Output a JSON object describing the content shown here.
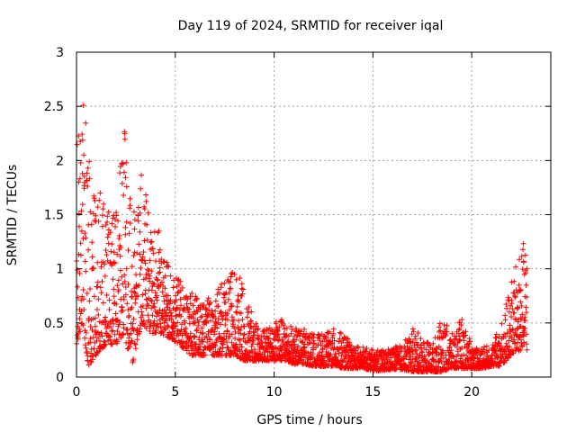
{
  "chart_data": {
    "type": "scatter",
    "title": "Day 119 of 2024, SRMTID for receiver iqal",
    "xlabel": "GPS time / hours",
    "ylabel": "SRMTID / TECUs",
    "xlim": [
      0,
      24
    ],
    "ylim": [
      0,
      3
    ],
    "xticks": [
      0,
      5,
      10,
      15,
      20
    ],
    "yticks": [
      0,
      0.5,
      1,
      1.5,
      2,
      2.5,
      3
    ],
    "grid": true,
    "marker": "+",
    "series_color": "#ff0000",
    "envelope": {
      "x": [
        0.0,
        0.3,
        0.6,
        1.0,
        1.5,
        2.0,
        2.4,
        2.8,
        3.3,
        3.8,
        4.3,
        4.8,
        5.2,
        5.8,
        6.5,
        7.0,
        7.5,
        8.0,
        8.5,
        9.0,
        9.5,
        10.0,
        10.5,
        11.0,
        11.5,
        12.0,
        12.5,
        13.0,
        13.5,
        14.0,
        14.5,
        15.0,
        15.5,
        16.0,
        16.5,
        17.0,
        17.5,
        18.0,
        18.5,
        19.0,
        19.5,
        20.0,
        20.5,
        21.0,
        21.5,
        22.0,
        22.5,
        22.8
      ],
      "low": [
        0.3,
        0.5,
        0.1,
        0.2,
        0.3,
        0.3,
        0.4,
        0.1,
        0.5,
        0.4,
        0.4,
        0.35,
        0.3,
        0.2,
        0.2,
        0.2,
        0.2,
        0.2,
        0.15,
        0.15,
        0.15,
        0.15,
        0.15,
        0.12,
        0.12,
        0.1,
        0.1,
        0.1,
        0.08,
        0.08,
        0.08,
        0.06,
        0.06,
        0.07,
        0.07,
        0.05,
        0.05,
        0.05,
        0.05,
        0.08,
        0.08,
        0.08,
        0.08,
        0.1,
        0.1,
        0.2,
        0.25,
        0.25
      ],
      "high": [
        2.2,
        2.6,
        2.2,
        1.8,
        1.6,
        1.5,
        2.4,
        1.5,
        1.9,
        1.5,
        1.3,
        1.0,
        0.9,
        0.8,
        0.7,
        0.8,
        0.9,
        1.0,
        0.85,
        0.5,
        0.45,
        0.5,
        0.55,
        0.45,
        0.45,
        0.4,
        0.4,
        0.45,
        0.4,
        0.3,
        0.28,
        0.25,
        0.25,
        0.28,
        0.3,
        0.45,
        0.38,
        0.3,
        0.55,
        0.4,
        0.55,
        0.3,
        0.28,
        0.3,
        0.5,
        0.9,
        1.2,
        1.3
      ],
      "count_per_hour": 120
    }
  }
}
